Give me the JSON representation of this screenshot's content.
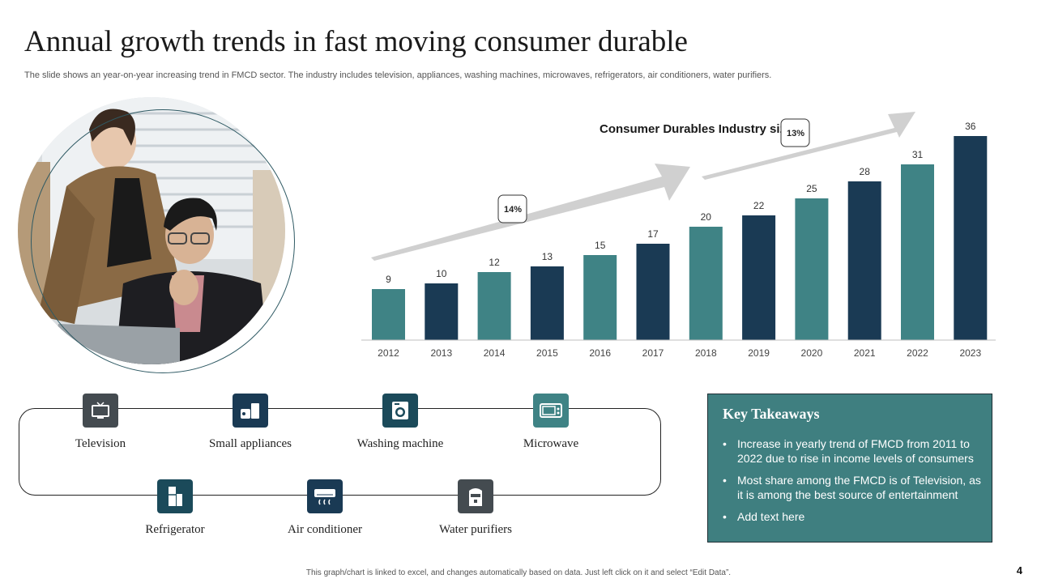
{
  "header": {
    "title": "Annual growth trends in fast moving consumer durable",
    "subtitle": "The slide shows an year-on-year increasing trend in FMCD sector. The industry includes television, appliances, washing machines, microwaves, refrigerators, air conditioners, water purifiers."
  },
  "chart_data": {
    "type": "bar",
    "title": "Consumer  Durables Industry  size",
    "categories": [
      "2012",
      "2013",
      "2014",
      "2015",
      "2016",
      "2017",
      "2018",
      "2019",
      "2020",
      "2021",
      "2022",
      "2023"
    ],
    "values": [
      9,
      10,
      12,
      13,
      15,
      17,
      20,
      22,
      25,
      28,
      31,
      36
    ],
    "ylim": [
      0,
      36
    ],
    "grid": false,
    "colors": [
      "#3f8385",
      "#1a3a54",
      "#3f8385",
      "#1a3a54",
      "#3f8385",
      "#1a3a54",
      "#3f8385",
      "#1a3a54",
      "#3f8385",
      "#1a3a54",
      "#3f8385",
      "#1a3a54"
    ],
    "annotations": [
      {
        "label": "14%"
      },
      {
        "label": "13%"
      }
    ]
  },
  "categories": [
    {
      "label": "Television",
      "icon": "television-icon",
      "color": "#444b50"
    },
    {
      "label": "Small appliances",
      "icon": "small-appliances-icon",
      "color": "#1a3a54"
    },
    {
      "label": "Washing  machine",
      "icon": "washing-machine-icon",
      "color": "#1b4a5a"
    },
    {
      "label": "Microwave",
      "icon": "microwave-icon",
      "color": "#3f8385"
    },
    {
      "label": "Refrigerator",
      "icon": "refrigerator-icon",
      "color": "#1b4a5a"
    },
    {
      "label": "Air conditioner",
      "icon": "air-conditioner-icon",
      "color": "#1a3a54"
    },
    {
      "label": "Water purifiers",
      "icon": "water-purifier-icon",
      "color": "#444b50"
    }
  ],
  "takeaways": {
    "title": "Key Takeaways",
    "items": [
      "Increase in yearly trend of FMCD from 2011 to\n2022 due to rise in income levels of consumers",
      "Most share among the FMCD is of Television, as\nit is among the best source of entertainment",
      "Add text here"
    ]
  },
  "footer": {
    "note": "This graph/chart is linked to excel, and changes automatically based on data. Just left click on it and select “Edit Data”.",
    "page": "4"
  }
}
